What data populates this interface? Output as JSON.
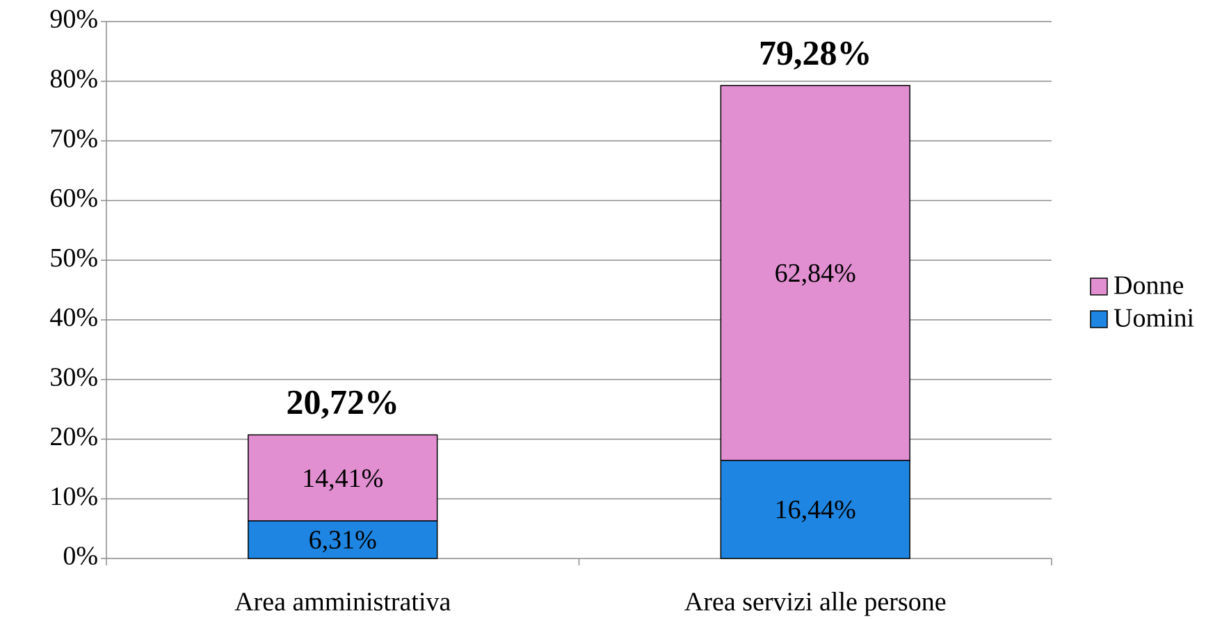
{
  "chart_data": {
    "type": "stacked_bar",
    "categories": [
      "Area amministrativa",
      "Area servizi alle persone"
    ],
    "series": [
      {
        "name": "Uomini",
        "color": "#1e86e2",
        "values": [
          6.31,
          16.44
        ],
        "value_labels": [
          "6,31%",
          "16,44%"
        ]
      },
      {
        "name": "Donne",
        "color": "#e28fd2",
        "values": [
          14.41,
          62.84
        ],
        "value_labels": [
          "14,41%",
          "62,84%"
        ]
      }
    ],
    "totals": [
      20.72,
      79.28
    ],
    "total_labels": [
      "20,72%",
      "79,28%"
    ],
    "ylim": [
      0,
      90
    ],
    "yticks": [
      {
        "value": 0,
        "label": "0%"
      },
      {
        "value": 10,
        "label": "10%"
      },
      {
        "value": 20,
        "label": "20%"
      },
      {
        "value": 30,
        "label": "30%"
      },
      {
        "value": 40,
        "label": "40%"
      },
      {
        "value": 50,
        "label": "50%"
      },
      {
        "value": 60,
        "label": "60%"
      },
      {
        "value": 70,
        "label": "70%"
      },
      {
        "value": 80,
        "label": "80%"
      },
      {
        "value": 90,
        "label": "90%"
      }
    ],
    "grid": true,
    "legend": "right"
  }
}
